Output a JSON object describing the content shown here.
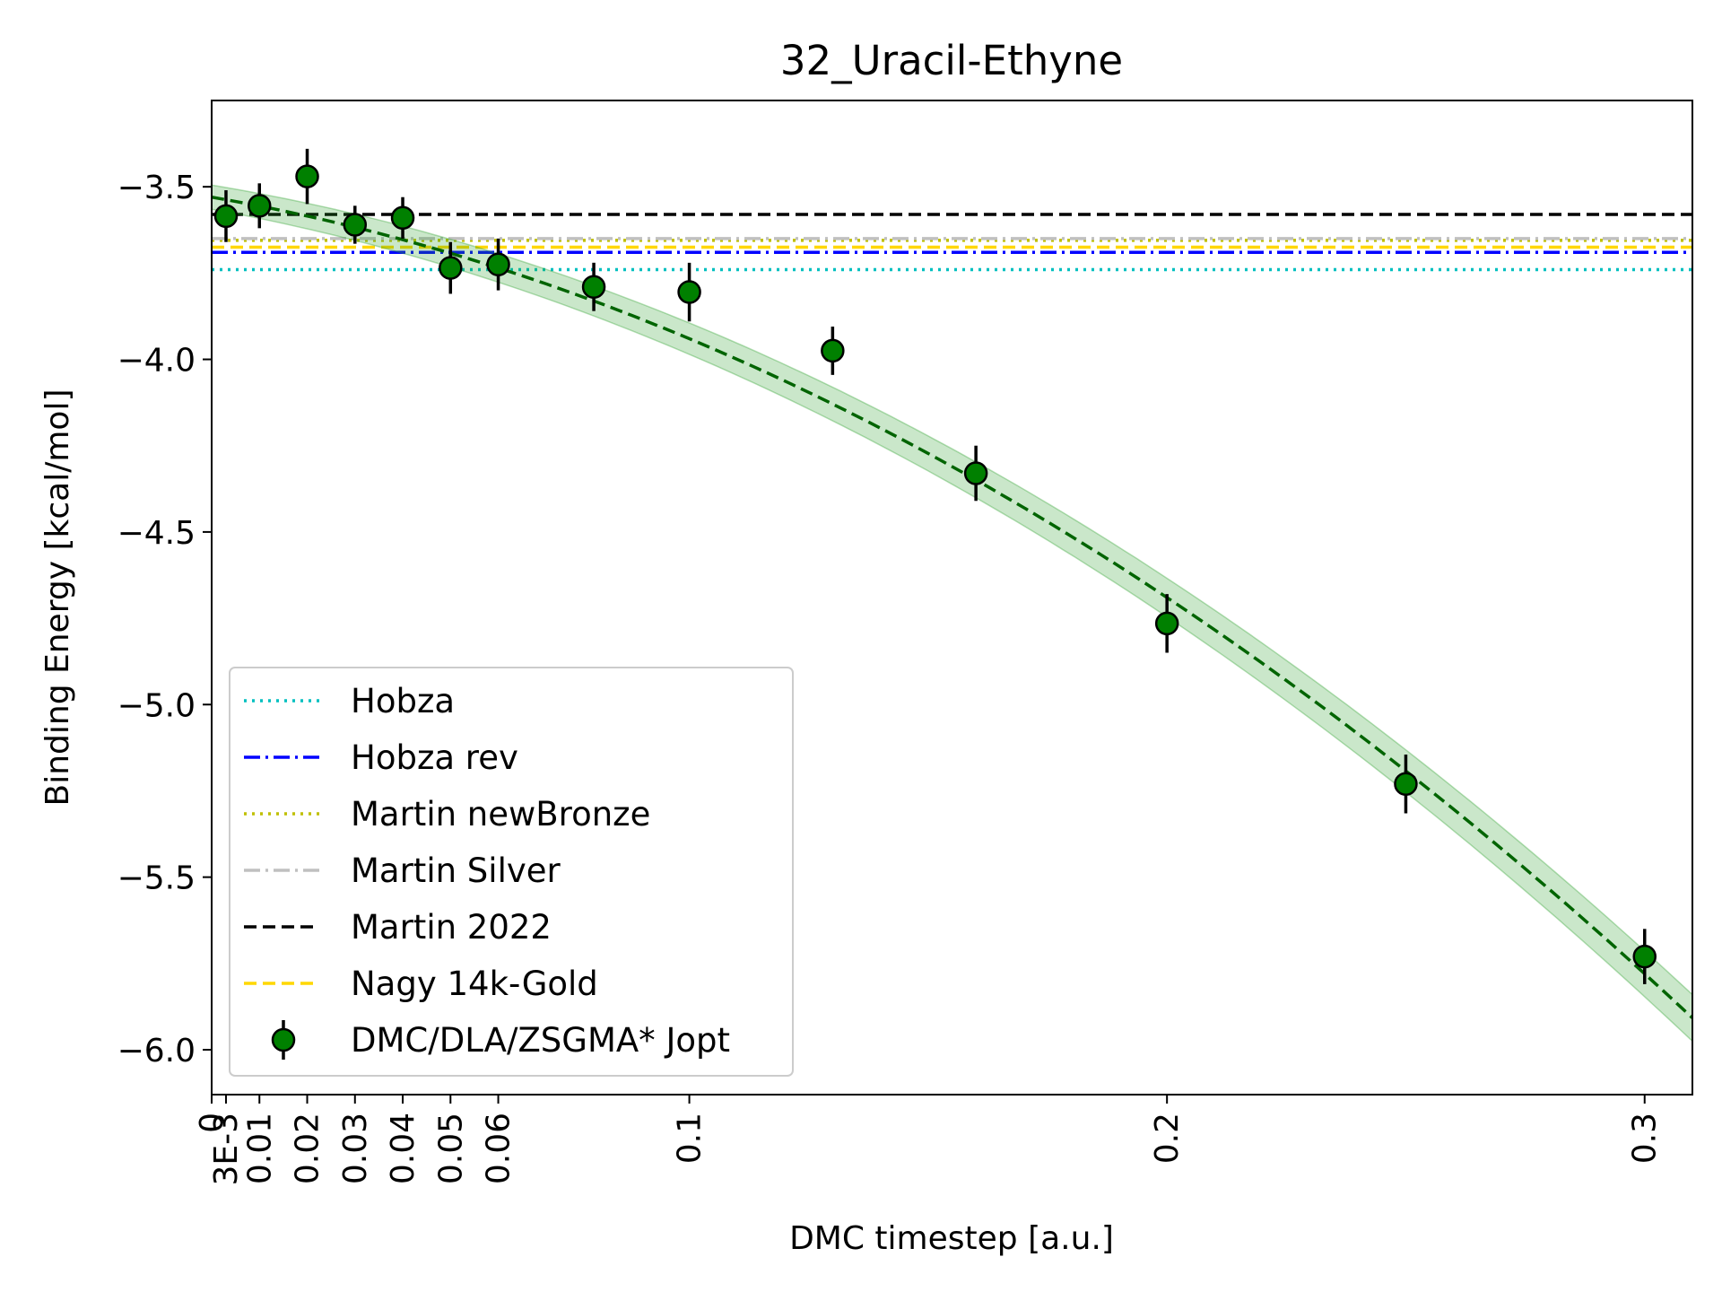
{
  "chart_data": {
    "type": "scatter",
    "title": "32_Uracil-Ethyne",
    "xlabel": "DMC timestep [a.u.]",
    "ylabel": "Binding Energy [kcal/mol]",
    "xlim": [
      0,
      0.31
    ],
    "ylim": [
      -6.13,
      -3.25
    ],
    "x_ticks": [
      {
        "value": 0,
        "label": "0"
      },
      {
        "value": 0.003,
        "label": "3E-3"
      },
      {
        "value": 0.01,
        "label": "0.01"
      },
      {
        "value": 0.02,
        "label": "0.02"
      },
      {
        "value": 0.03,
        "label": "0.03"
      },
      {
        "value": 0.04,
        "label": "0.04"
      },
      {
        "value": 0.05,
        "label": "0.05"
      },
      {
        "value": 0.06,
        "label": "0.06"
      },
      {
        "value": 0.1,
        "label": "0.1"
      },
      {
        "value": 0.2,
        "label": "0.2"
      },
      {
        "value": 0.3,
        "label": "0.3"
      }
    ],
    "y_ticks": [
      {
        "value": -3.5,
        "label": "−3.5"
      },
      {
        "value": -4.0,
        "label": "−4.0"
      },
      {
        "value": -4.5,
        "label": "−4.5"
      },
      {
        "value": -5.0,
        "label": "−5.0"
      },
      {
        "value": -5.5,
        "label": "−5.5"
      },
      {
        "value": -6.0,
        "label": "−6.0"
      }
    ],
    "grid": false,
    "legend_position": "lower-left",
    "reference_lines": [
      {
        "name": "Hobza",
        "y": -3.74,
        "color": "#00bfbf",
        "style": "dotted"
      },
      {
        "name": "Hobza rev",
        "y": -3.69,
        "color": "#0000ff",
        "style": "dashdot"
      },
      {
        "name": "Martin newBronze",
        "y": -3.655,
        "color": "#bfbf00",
        "style": "dotted"
      },
      {
        "name": "Martin Silver",
        "y": -3.65,
        "color": "#c0c0c0",
        "style": "dashdot"
      },
      {
        "name": "Martin 2022",
        "y": -3.58,
        "color": "#000000",
        "style": "dashed"
      },
      {
        "name": "Nagy 14k-Gold",
        "y": -3.675,
        "color": "#ffd700",
        "style": "dashed"
      }
    ],
    "series": [
      {
        "name": "DMC/DLA/ZSGMA* Jopt",
        "color": "#008000",
        "x": [
          0.003,
          0.01,
          0.02,
          0.03,
          0.04,
          0.05,
          0.06,
          0.08,
          0.1,
          0.13,
          0.16,
          0.2,
          0.25,
          0.3
        ],
        "y": [
          -3.585,
          -3.555,
          -3.47,
          -3.61,
          -3.59,
          -3.735,
          -3.725,
          -3.79,
          -3.805,
          -3.975,
          -4.33,
          -4.765,
          -5.23,
          -5.73
        ],
        "yerr": [
          0.075,
          0.065,
          0.08,
          0.055,
          0.06,
          0.075,
          0.075,
          0.07,
          0.085,
          0.07,
          0.08,
          0.085,
          0.085,
          0.08
        ]
      }
    ],
    "fit": {
      "color": "#006400",
      "band_color": "#2ca02c",
      "coefficients": [
        -3.53,
        -2.4,
        -17.0
      ],
      "band_halfwidth": 0.035
    }
  }
}
